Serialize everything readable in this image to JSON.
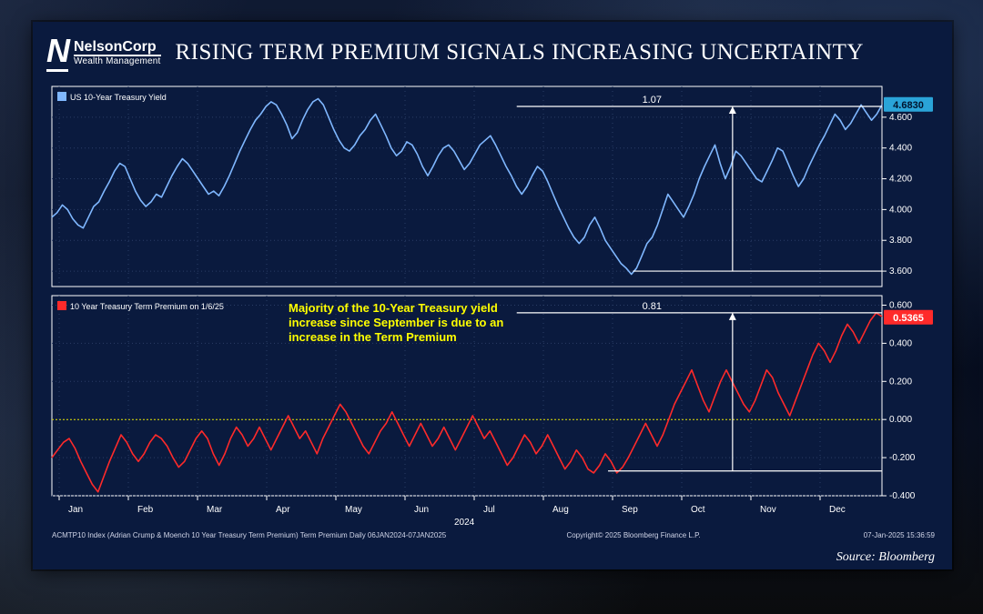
{
  "brand": {
    "name_line1": "NelsonCorp",
    "name_line2": "Wealth Management",
    "initial": "N"
  },
  "title": "RISING TERM PREMIUM SIGNALS INCREASING UNCERTAINTY",
  "source_label": "Source: Bloomberg",
  "footer": {
    "left": "ACMTP10 Index (Adrian Crump & Moench 10 Year Treasury Term Premium) Term Premium   Daily  06JAN2024-07JAN2025",
    "center": "Copyright© 2025 Bloomberg Finance L.P.",
    "right": "07-Jan-2025 15:36:59"
  },
  "x_axis": {
    "months": [
      "Jan",
      "Feb",
      "Mar",
      "Apr",
      "May",
      "Jun",
      "Jul",
      "Aug",
      "Sep",
      "Oct",
      "Nov",
      "Dec"
    ],
    "year_label": "2024"
  },
  "chart1": {
    "type": "line",
    "legend": "US 10-Year Treasury Yield",
    "line_color": "#7fb7ff",
    "line_width": 1.6,
    "ylim": [
      3.5,
      4.8
    ],
    "yticks": [
      3.6,
      3.8,
      4.0,
      4.2,
      4.4,
      4.6
    ],
    "current_value_label": "4.6830",
    "badge_bg": "#2aa4d8",
    "badge_fg": "#00142e",
    "callout_label": "1.07",
    "data": [
      3.95,
      3.98,
      4.03,
      4.0,
      3.94,
      3.9,
      3.88,
      3.95,
      4.02,
      4.05,
      4.12,
      4.18,
      4.25,
      4.3,
      4.28,
      4.2,
      4.12,
      4.06,
      4.02,
      4.05,
      4.1,
      4.08,
      4.15,
      4.22,
      4.28,
      4.33,
      4.3,
      4.25,
      4.2,
      4.15,
      4.1,
      4.12,
      4.09,
      4.15,
      4.22,
      4.3,
      4.38,
      4.45,
      4.52,
      4.58,
      4.62,
      4.67,
      4.7,
      4.68,
      4.62,
      4.55,
      4.46,
      4.5,
      4.58,
      4.65,
      4.7,
      4.72,
      4.68,
      4.6,
      4.52,
      4.45,
      4.4,
      4.38,
      4.42,
      4.48,
      4.52,
      4.58,
      4.62,
      4.55,
      4.48,
      4.4,
      4.35,
      4.38,
      4.44,
      4.42,
      4.36,
      4.28,
      4.22,
      4.28,
      4.35,
      4.4,
      4.42,
      4.38,
      4.32,
      4.26,
      4.3,
      4.36,
      4.42,
      4.45,
      4.48,
      4.42,
      4.35,
      4.28,
      4.22,
      4.15,
      4.1,
      4.15,
      4.22,
      4.28,
      4.25,
      4.18,
      4.1,
      4.02,
      3.95,
      3.88,
      3.82,
      3.78,
      3.82,
      3.9,
      3.95,
      3.88,
      3.8,
      3.75,
      3.7,
      3.65,
      3.62,
      3.58,
      3.62,
      3.7,
      3.78,
      3.82,
      3.9,
      4.0,
      4.1,
      4.05,
      4.0,
      3.95,
      4.02,
      4.1,
      4.2,
      4.28,
      4.35,
      4.42,
      4.3,
      4.2,
      4.28,
      4.38,
      4.35,
      4.3,
      4.25,
      4.2,
      4.18,
      4.25,
      4.32,
      4.4,
      4.38,
      4.3,
      4.22,
      4.15,
      4.2,
      4.28,
      4.35,
      4.42,
      4.48,
      4.55,
      4.62,
      4.58,
      4.52,
      4.56,
      4.62,
      4.68,
      4.63,
      4.58,
      4.62,
      4.68
    ]
  },
  "chart2": {
    "type": "line",
    "legend": "10 Year Treasury Term Premium on 1/6/25",
    "line_color": "#ff2a2a",
    "line_width": 1.6,
    "ylim": [
      -0.4,
      0.65
    ],
    "yticks": [
      -0.4,
      -0.2,
      0.0,
      0.2,
      0.4,
      0.6
    ],
    "current_value_label": "0.5365",
    "badge_bg": "#ff2a2a",
    "badge_fg": "#ffffff",
    "callout_label": "0.81",
    "zero_line_color": "#e6e600",
    "annotation_lines": [
      "Majority of the 10-Year Treasury yield",
      "increase since September is due to an",
      "increase in the Term Premium"
    ],
    "data": [
      -0.2,
      -0.16,
      -0.12,
      -0.1,
      -0.15,
      -0.22,
      -0.28,
      -0.34,
      -0.38,
      -0.3,
      -0.22,
      -0.15,
      -0.08,
      -0.12,
      -0.18,
      -0.22,
      -0.18,
      -0.12,
      -0.08,
      -0.1,
      -0.14,
      -0.2,
      -0.25,
      -0.22,
      -0.16,
      -0.1,
      -0.06,
      -0.1,
      -0.18,
      -0.24,
      -0.18,
      -0.1,
      -0.04,
      -0.08,
      -0.14,
      -0.1,
      -0.04,
      -0.1,
      -0.16,
      -0.1,
      -0.04,
      0.02,
      -0.04,
      -0.1,
      -0.06,
      -0.12,
      -0.18,
      -0.1,
      -0.04,
      0.02,
      0.08,
      0.04,
      -0.02,
      -0.08,
      -0.14,
      -0.18,
      -0.12,
      -0.06,
      -0.02,
      0.04,
      -0.02,
      -0.08,
      -0.14,
      -0.08,
      -0.02,
      -0.08,
      -0.14,
      -0.1,
      -0.04,
      -0.1,
      -0.16,
      -0.1,
      -0.04,
      0.02,
      -0.04,
      -0.1,
      -0.06,
      -0.12,
      -0.18,
      -0.24,
      -0.2,
      -0.14,
      -0.08,
      -0.12,
      -0.18,
      -0.14,
      -0.08,
      -0.14,
      -0.2,
      -0.26,
      -0.22,
      -0.16,
      -0.2,
      -0.26,
      -0.28,
      -0.24,
      -0.18,
      -0.22,
      -0.28,
      -0.25,
      -0.2,
      -0.14,
      -0.08,
      -0.02,
      -0.08,
      -0.14,
      -0.08,
      0.0,
      0.08,
      0.14,
      0.2,
      0.26,
      0.18,
      0.1,
      0.04,
      0.12,
      0.2,
      0.26,
      0.2,
      0.14,
      0.08,
      0.04,
      0.1,
      0.18,
      0.26,
      0.22,
      0.14,
      0.08,
      0.02,
      0.1,
      0.18,
      0.26,
      0.34,
      0.4,
      0.36,
      0.3,
      0.36,
      0.44,
      0.5,
      0.46,
      0.4,
      0.46,
      0.52,
      0.56,
      0.54
    ]
  },
  "colors": {
    "panel_bg": "#0a1a3e",
    "grid": "#2a3d66",
    "axis_text": "#ffffff"
  }
}
